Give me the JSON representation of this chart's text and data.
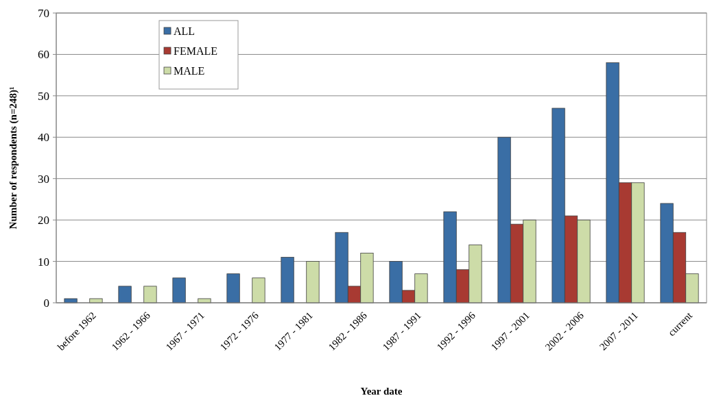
{
  "chart_data": {
    "type": "bar",
    "xlabel": "Year date",
    "ylabel": "Number of respondents (n=248)¹",
    "categories": [
      "before 1962",
      "1962 - 1966",
      "1967 - 1971",
      "1972 - 1976",
      "1977 - 1981",
      "1982 - 1986",
      "1987 - 1991",
      "1992 - 1996",
      "1997 - 2001",
      "2002 - 2006",
      "2007 - 2011",
      "current"
    ],
    "series": [
      {
        "name": "ALL",
        "color": "#3a6ea5",
        "values": [
          1,
          4,
          6,
          7,
          11,
          17,
          10,
          22,
          40,
          47,
          58,
          24
        ]
      },
      {
        "name": "FEMALE",
        "color": "#a83a32",
        "values": [
          0,
          0,
          0,
          0,
          0,
          4,
          3,
          8,
          19,
          21,
          29,
          17
        ]
      },
      {
        "name": "MALE",
        "color": "#cddca8",
        "values": [
          1,
          4,
          1,
          6,
          10,
          12,
          7,
          14,
          20,
          20,
          29,
          7
        ]
      }
    ],
    "ylim": [
      0,
      70
    ],
    "yticks": [
      0,
      10,
      20,
      30,
      40,
      50,
      60,
      70
    ],
    "grid": "y",
    "legend": "top left"
  }
}
